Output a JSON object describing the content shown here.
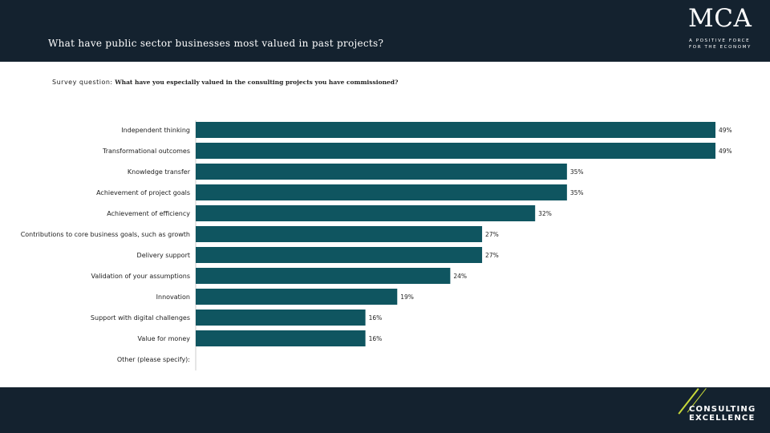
{
  "header": {
    "title": "What have public sector businesses most valued in past projects?",
    "logo_text": "MCA",
    "logo_tagline": "A POSITIVE FORCE FOR THE ECONOMY"
  },
  "survey": {
    "label": "Survey question:",
    "question": "What have you especially valued in the consulting projects you have commissioned?"
  },
  "footer": {
    "logo_line1": "CONSULTING",
    "logo_line2": "EXCELLENCE"
  },
  "colors": {
    "bar": "#0f5560",
    "header_bg": "#14222f",
    "accent": "#c8d93a"
  },
  "chart_data": {
    "type": "bar",
    "orientation": "horizontal",
    "categories": [
      "Independent thinking",
      "Transformational outcomes",
      "Knowledge transfer",
      "Achievement of project goals",
      "Achievement of efficiency",
      "Contributions to core business goals, such as growth",
      "Delivery support",
      "Validation of your assumptions",
      "Innovation",
      "Support with digital challenges",
      "Value for money",
      "Other (please specify):"
    ],
    "values": [
      49,
      49,
      35,
      35,
      32,
      27,
      27,
      24,
      19,
      16,
      16,
      0
    ],
    "value_labels": [
      "49%",
      "49%",
      "35%",
      "35%",
      "32%",
      "27%",
      "27%",
      "24%",
      "19%",
      "16%",
      "16%",
      ""
    ],
    "unit": "%",
    "title": "",
    "xlabel": "",
    "ylabel": "",
    "xlim": [
      0,
      49
    ],
    "grid": false,
    "legend": false
  }
}
